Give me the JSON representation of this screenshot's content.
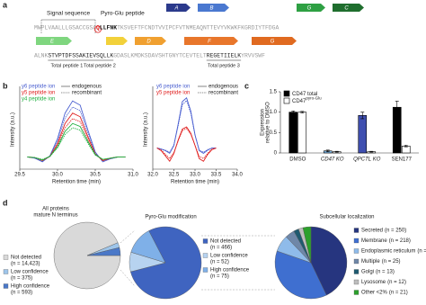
{
  "panel_labels": [
    "a",
    "b",
    "c",
    "d"
  ],
  "panel_a": {
    "signal_label": "Signal sequence",
    "pyro_label": "Pyro-Glu peptide",
    "line_1": [
      {
        "text": "MWPLVAALLLGSACCGSA",
        "style": "plain"
      },
      {
        "text": "Q",
        "style": "pyro"
      },
      {
        "text": "LLFNK",
        "style": "bold"
      },
      {
        "text": "TKSVEFTFCNDTVVIPCFVTNMEAQNTTEVYVKWKFKGRDIYTFDGA",
        "style": "plain"
      }
    ],
    "line_2": [
      {
        "text": "ALNK",
        "style": "plain"
      },
      {
        "text": "STVPTDFSSAK",
        "style": "peptide",
        "label": "Total peptide 1"
      },
      {
        "text": "IEVSQLLK",
        "style": "peptide",
        "label": "Total peptide 2"
      },
      {
        "text": "GDASLKMDKSDAVSHTGNYTCEVTELT",
        "style": "plain"
      },
      {
        "text": "REGETIIELK",
        "style": "peptide",
        "label": "Total peptide 3"
      },
      {
        "text": "YRVVSWF",
        "style": "plain"
      }
    ],
    "arrows_top": [
      {
        "label": "A",
        "color": "#2b3a8c"
      },
      {
        "label": "B",
        "color": "#4a78d0"
      },
      {
        "label": "G",
        "color": "#2ea043"
      },
      {
        "label": "C",
        "color": "#1f6e2e"
      }
    ],
    "arrows_bottom": [
      {
        "label": "E",
        "color": "#7fd67f"
      },
      {
        "label": null,
        "color": "#f2d13a"
      },
      {
        "label": "D",
        "color": "#f0a030"
      },
      {
        "label": "F",
        "color": "#e8762b"
      },
      {
        "label": "G",
        "color": "#e06a20"
      }
    ]
  },
  "chart_data": [
    {
      "type": "line",
      "ylabel": "Intensity (a.u.)",
      "xlabel": "Retention time (min)",
      "line_labels": [
        "endogenous",
        "recombinant"
      ],
      "xlim": [
        29.5,
        31.0
      ],
      "xticks": [
        29.5,
        {
          "value": 30,
          "label": "30.0"
        },
        30.5,
        {
          "value": 31,
          "label": "31.0"
        }
      ],
      "ylim": [
        -0.2,
        1.1
      ],
      "x": [
        29.6,
        29.7,
        29.8,
        29.9,
        30.0,
        30.1,
        30.2,
        30.3,
        30.4,
        30.5,
        30.6,
        30.7,
        30.8,
        30.9
      ],
      "series": [
        {
          "name": "y6 peptide ion",
          "color": "#4a5fd0",
          "values": [
            0,
            -0.02,
            -0.08,
            0.02,
            0.3,
            0.72,
            0.92,
            0.85,
            0.45,
            0.08,
            -0.08,
            -0.03,
            0,
            0
          ],
          "values_recombinant": [
            0,
            -0.02,
            -0.07,
            0.01,
            0.26,
            0.64,
            0.82,
            0.76,
            0.4,
            0.07,
            -0.07,
            -0.03,
            0,
            0
          ]
        },
        {
          "name": "y5 peptide ion",
          "color": "#e02020",
          "values": [
            0,
            -0.01,
            -0.06,
            0.01,
            0.22,
            0.55,
            0.72,
            0.66,
            0.34,
            0.05,
            -0.06,
            -0.02,
            0,
            0
          ],
          "values_recombinant": [
            0,
            -0.01,
            -0.05,
            0.01,
            0.19,
            0.48,
            0.63,
            0.58,
            0.3,
            0.04,
            -0.05,
            -0.02,
            0,
            0
          ]
        },
        {
          "name": "y4 peptide ion",
          "color": "#20b040",
          "values": [
            0,
            -0.01,
            -0.05,
            0.01,
            0.17,
            0.42,
            0.55,
            0.5,
            0.26,
            0.04,
            -0.04,
            -0.02,
            0,
            0
          ],
          "values_recombinant": [
            0,
            -0.01,
            -0.04,
            0.01,
            0.15,
            0.37,
            0.48,
            0.44,
            0.23,
            0.03,
            -0.04,
            -0.02,
            0,
            0
          ]
        }
      ]
    },
    {
      "type": "line",
      "ylabel": "Intensity (a.u.)",
      "xlabel": "Retention time (min)",
      "line_labels": [
        "endogenous",
        "recombinant"
      ],
      "xlim": [
        32.0,
        34.0
      ],
      "xticks": [
        {
          "value": 32,
          "label": "32.0"
        },
        32.5,
        {
          "value": 33,
          "label": "33.0"
        },
        33.5,
        {
          "value": 34,
          "label": "34.0"
        }
      ],
      "ylim": [
        -0.4,
        1.1
      ],
      "x": [
        32.1,
        32.2,
        32.3,
        32.4,
        32.5,
        32.6,
        32.7,
        32.8,
        32.9,
        33.0,
        33.1,
        33.2,
        33.3,
        33.4,
        33.5
      ],
      "series": [
        {
          "name": "y6 peptide ion",
          "color": "#4a5fd0",
          "values": [
            0,
            -0.02,
            -0.05,
            -0.1,
            0.05,
            0.45,
            0.88,
            0.95,
            0.7,
            0.25,
            -0.05,
            -0.1,
            -0.04,
            0,
            0
          ],
          "values_recombinant": [
            0,
            -0.02,
            -0.04,
            -0.08,
            0.06,
            0.42,
            0.82,
            0.9,
            0.66,
            0.24,
            -0.04,
            -0.08,
            -0.03,
            0,
            0
          ]
        },
        {
          "name": "y5 peptide ion",
          "color": "#e02020",
          "values": [
            0,
            -0.05,
            -0.15,
            -0.25,
            -0.1,
            0.15,
            0.36,
            0.4,
            0.28,
            0.05,
            -0.2,
            -0.25,
            -0.12,
            -0.03,
            0
          ],
          "values_recombinant": [
            0,
            -0.04,
            -0.12,
            -0.2,
            -0.08,
            0.13,
            0.33,
            0.37,
            0.26,
            0.05,
            -0.16,
            -0.2,
            -0.1,
            -0.02,
            0
          ]
        }
      ]
    },
    {
      "type": "bar",
      "ylabel": [
        "Expression",
        "relative to DMSO"
      ],
      "categories": [
        "DMSO",
        "CD47 KO",
        "QPCTL KO",
        "SEN177"
      ],
      "ylim": [
        0,
        1.5
      ],
      "yticks": [
        0,
        0.5,
        {
          "value": 1,
          "label": "1.0"
        },
        1.5
      ],
      "series": [
        {
          "name": "CD47 total",
          "color": "#000000",
          "colors": [
            "#000000",
            "#7fb8e8",
            "#3f4fb0",
            "#000000"
          ],
          "values": [
            1.0,
            0.05,
            0.92,
            1.12
          ],
          "errors": [
            0.03,
            0.02,
            0.08,
            0.15
          ]
        },
        {
          "name": "CD47",
          "name_superscript": "pyro-Glu",
          "color": "#ffffff",
          "values": [
            1.0,
            0.03,
            0.03,
            0.17
          ],
          "errors": [
            0.02,
            0.01,
            0.01,
            0.02
          ]
        }
      ]
    },
    {
      "type": "pie",
      "title": [
        "All proteins",
        "mature N terminus"
      ],
      "categories": [
        "Not detected",
        "Low confidence",
        "High confidence"
      ],
      "values": [
        14423,
        375,
        593
      ],
      "value_labels": [
        "(n = 14,423)",
        "(n = 375)",
        "(n = 593)"
      ],
      "colors": [
        "#d9d9d9",
        "#9ec5ea",
        "#4a78c8"
      ]
    },
    {
      "type": "pie",
      "title": [
        "Pyro-Glu modification"
      ],
      "categories": [
        "Not detected",
        "Low confidence",
        "High confidence"
      ],
      "values": [
        466,
        52,
        75
      ],
      "value_labels": [
        "(n = 466)",
        "(n = 52)",
        "(n = 75)"
      ],
      "colors": [
        "#3f64c0",
        "#b7d3f0",
        "#7fb0e8"
      ]
    },
    {
      "type": "pie",
      "title": [
        "Subcellular localization"
      ],
      "categories": [
        "Secreted",
        "Membrane",
        "Endoplasmic reticulum",
        "Multiple",
        "Golgi",
        "Lysosome",
        "Other <2%"
      ],
      "values": [
        250,
        218,
        44,
        25,
        13,
        12,
        21
      ],
      "value_labels": [
        "(n = 250)",
        "(n = 218)",
        "(n = 44)",
        "(n = 25)",
        "(n = 13)",
        "(n = 12)",
        "(n = 21)"
      ],
      "colors": [
        "#26357f",
        "#3f6fd0",
        "#8fbbea",
        "#6f87a8",
        "#1f5a70",
        "#bdbdbd",
        "#2ca02c"
      ]
    }
  ]
}
